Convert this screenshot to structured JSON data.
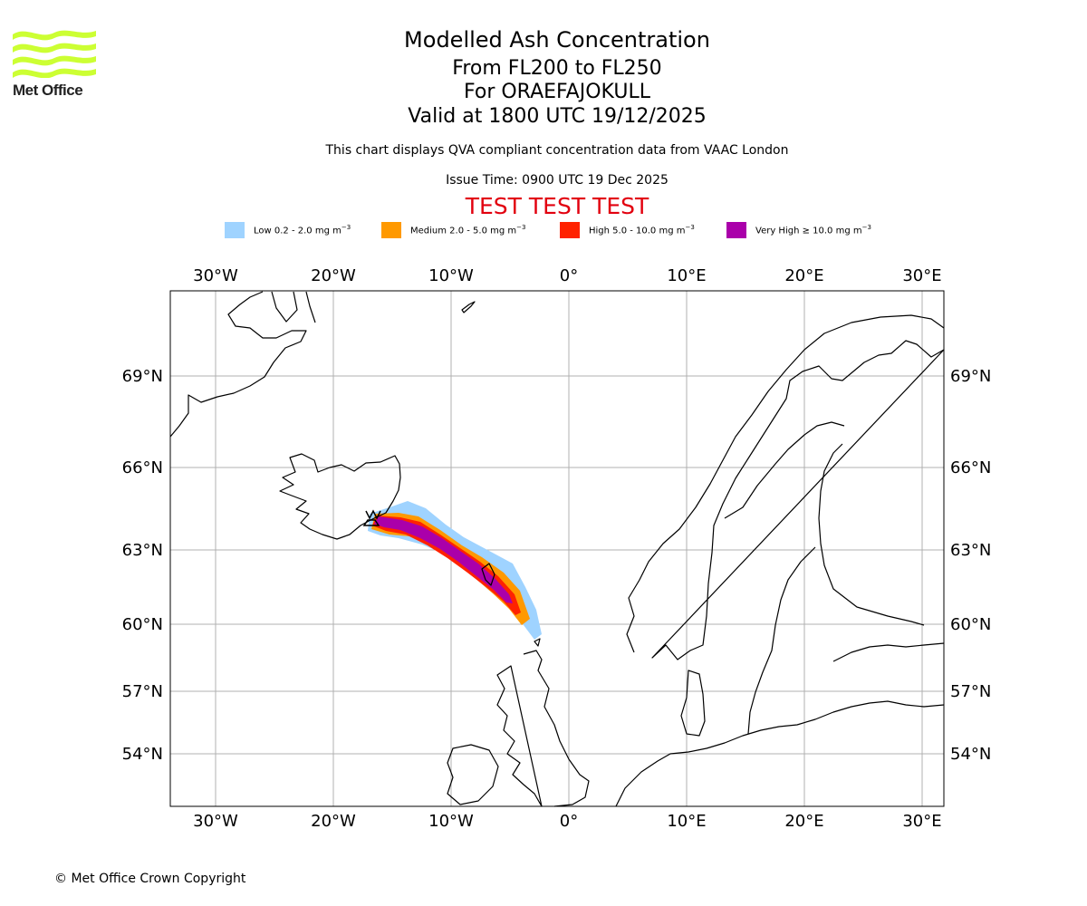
{
  "logo": {
    "text": "Met Office",
    "icon": "met-office-wave-logo",
    "color": "#ccff33"
  },
  "title": {
    "main": "Modelled Ash Concentration",
    "levels": "From FL200 to FL250",
    "volcano": "For ORAEFAJOKULL",
    "valid": "Valid at 1800 UTC 19/12/2025",
    "note": "This chart displays QVA compliant concentration data from VAAC London",
    "issue": "Issue Time: 0900 UTC 19 Dec 2025",
    "test_banner": "TEST TEST TEST"
  },
  "legend": [
    {
      "label": "Low 0.2 - 2.0 mg m",
      "unit_sup": "−3",
      "color": "#9fd3ff"
    },
    {
      "label": "Medium 2.0 - 5.0 mg m",
      "unit_sup": "−3",
      "color": "#ff9900"
    },
    {
      "label": "High 5.0 - 10.0 mg m",
      "unit_sup": "−3",
      "color": "#ff2200"
    },
    {
      "label": "Very High ≥ 10.0 mg m",
      "unit_sup": "−3",
      "color": "#aa00aa"
    }
  ],
  "map": {
    "lon_labels": [
      "30°W",
      "20°W",
      "10°W",
      "0°",
      "10°E",
      "20°E",
      "30°E"
    ],
    "lat_labels": [
      "69°N",
      "66°N",
      "63°N",
      "60°N",
      "57°N",
      "54°N"
    ],
    "volcano_name": "ORAEFAJOKULL"
  },
  "copyright": "© Met Office Crown Copyright"
}
